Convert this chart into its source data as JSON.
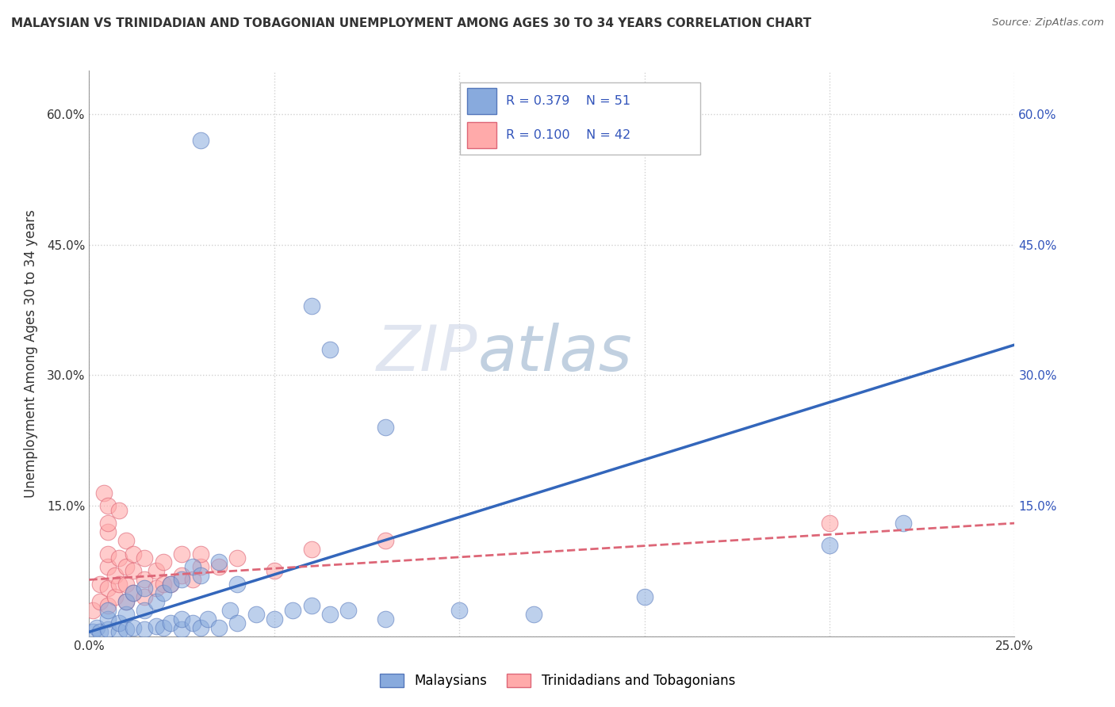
{
  "title": "MALAYSIAN VS TRINIDADIAN AND TOBAGONIAN UNEMPLOYMENT AMONG AGES 30 TO 34 YEARS CORRELATION CHART",
  "source": "Source: ZipAtlas.com",
  "ylabel": "Unemployment Among Ages 30 to 34 years",
  "xlim": [
    0.0,
    0.25
  ],
  "ylim": [
    0.0,
    0.65
  ],
  "xticks": [
    0.0,
    0.05,
    0.1,
    0.15,
    0.2,
    0.25
  ],
  "xticklabels": [
    "0.0%",
    "",
    "",
    "",
    "",
    "25.0%"
  ],
  "yticks": [
    0.0,
    0.15,
    0.3,
    0.45,
    0.6
  ],
  "yticklabels": [
    "",
    "15.0%",
    "30.0%",
    "45.0%",
    "60.0%"
  ],
  "right_yticklabels": [
    "15.0%",
    "30.0%",
    "45.0%",
    "60.0%"
  ],
  "grid_color": "#cccccc",
  "background_color": "#ffffff",
  "watermark_zip": "ZIP",
  "watermark_atlas": "atlas",
  "legend_r1": "0.379",
  "legend_n1": "51",
  "legend_r2": "0.100",
  "legend_n2": "42",
  "blue_color": "#88aadd",
  "pink_color": "#ffaaaa",
  "blue_edge": "#5577bb",
  "pink_edge": "#dd6677",
  "line_blue_color": "#3366bb",
  "line_pink_color": "#dd6677",
  "text_color_blue": "#3355bb",
  "text_color_dark": "#333333",
  "malaysian_points": [
    [
      0.001,
      0.005
    ],
    [
      0.002,
      0.01
    ],
    [
      0.003,
      0.005
    ],
    [
      0.005,
      0.008
    ],
    [
      0.005,
      0.02
    ],
    [
      0.005,
      0.03
    ],
    [
      0.008,
      0.005
    ],
    [
      0.008,
      0.015
    ],
    [
      0.01,
      0.008
    ],
    [
      0.01,
      0.025
    ],
    [
      0.01,
      0.04
    ],
    [
      0.012,
      0.01
    ],
    [
      0.012,
      0.05
    ],
    [
      0.015,
      0.008
    ],
    [
      0.015,
      0.03
    ],
    [
      0.015,
      0.055
    ],
    [
      0.018,
      0.012
    ],
    [
      0.018,
      0.04
    ],
    [
      0.02,
      0.01
    ],
    [
      0.02,
      0.05
    ],
    [
      0.022,
      0.015
    ],
    [
      0.022,
      0.06
    ],
    [
      0.025,
      0.008
    ],
    [
      0.025,
      0.02
    ],
    [
      0.025,
      0.065
    ],
    [
      0.028,
      0.015
    ],
    [
      0.028,
      0.08
    ],
    [
      0.03,
      0.01
    ],
    [
      0.03,
      0.07
    ],
    [
      0.032,
      0.02
    ],
    [
      0.035,
      0.01
    ],
    [
      0.035,
      0.085
    ],
    [
      0.038,
      0.03
    ],
    [
      0.04,
      0.015
    ],
    [
      0.04,
      0.06
    ],
    [
      0.045,
      0.025
    ],
    [
      0.05,
      0.02
    ],
    [
      0.055,
      0.03
    ],
    [
      0.06,
      0.035
    ],
    [
      0.065,
      0.025
    ],
    [
      0.07,
      0.03
    ],
    [
      0.08,
      0.02
    ],
    [
      0.1,
      0.03
    ],
    [
      0.12,
      0.025
    ],
    [
      0.15,
      0.045
    ],
    [
      0.2,
      0.105
    ],
    [
      0.22,
      0.13
    ],
    [
      0.03,
      0.57
    ],
    [
      0.06,
      0.38
    ],
    [
      0.065,
      0.33
    ],
    [
      0.08,
      0.24
    ]
  ],
  "trinidadian_points": [
    [
      0.001,
      0.03
    ],
    [
      0.003,
      0.04
    ],
    [
      0.003,
      0.06
    ],
    [
      0.005,
      0.035
    ],
    [
      0.005,
      0.055
    ],
    [
      0.005,
      0.08
    ],
    [
      0.005,
      0.095
    ],
    [
      0.005,
      0.12
    ],
    [
      0.007,
      0.045
    ],
    [
      0.007,
      0.07
    ],
    [
      0.008,
      0.06
    ],
    [
      0.008,
      0.09
    ],
    [
      0.01,
      0.04
    ],
    [
      0.01,
      0.06
    ],
    [
      0.01,
      0.08
    ],
    [
      0.01,
      0.11
    ],
    [
      0.012,
      0.05
    ],
    [
      0.012,
      0.075
    ],
    [
      0.012,
      0.095
    ],
    [
      0.015,
      0.045
    ],
    [
      0.015,
      0.065
    ],
    [
      0.015,
      0.09
    ],
    [
      0.018,
      0.055
    ],
    [
      0.018,
      0.075
    ],
    [
      0.02,
      0.06
    ],
    [
      0.02,
      0.085
    ],
    [
      0.022,
      0.06
    ],
    [
      0.025,
      0.07
    ],
    [
      0.025,
      0.095
    ],
    [
      0.028,
      0.065
    ],
    [
      0.03,
      0.08
    ],
    [
      0.03,
      0.095
    ],
    [
      0.035,
      0.08
    ],
    [
      0.04,
      0.09
    ],
    [
      0.05,
      0.075
    ],
    [
      0.06,
      0.1
    ],
    [
      0.08,
      0.11
    ],
    [
      0.004,
      0.165
    ],
    [
      0.005,
      0.13
    ],
    [
      0.005,
      0.15
    ],
    [
      0.008,
      0.145
    ],
    [
      0.2,
      0.13
    ]
  ],
  "blue_line_points": [
    [
      0.0,
      0.005
    ],
    [
      0.25,
      0.335
    ]
  ],
  "pink_line_points": [
    [
      0.0,
      0.065
    ],
    [
      0.25,
      0.13
    ]
  ],
  "legend_label1": "Malaysians",
  "legend_label2": "Trinidadians and Tobagonians"
}
